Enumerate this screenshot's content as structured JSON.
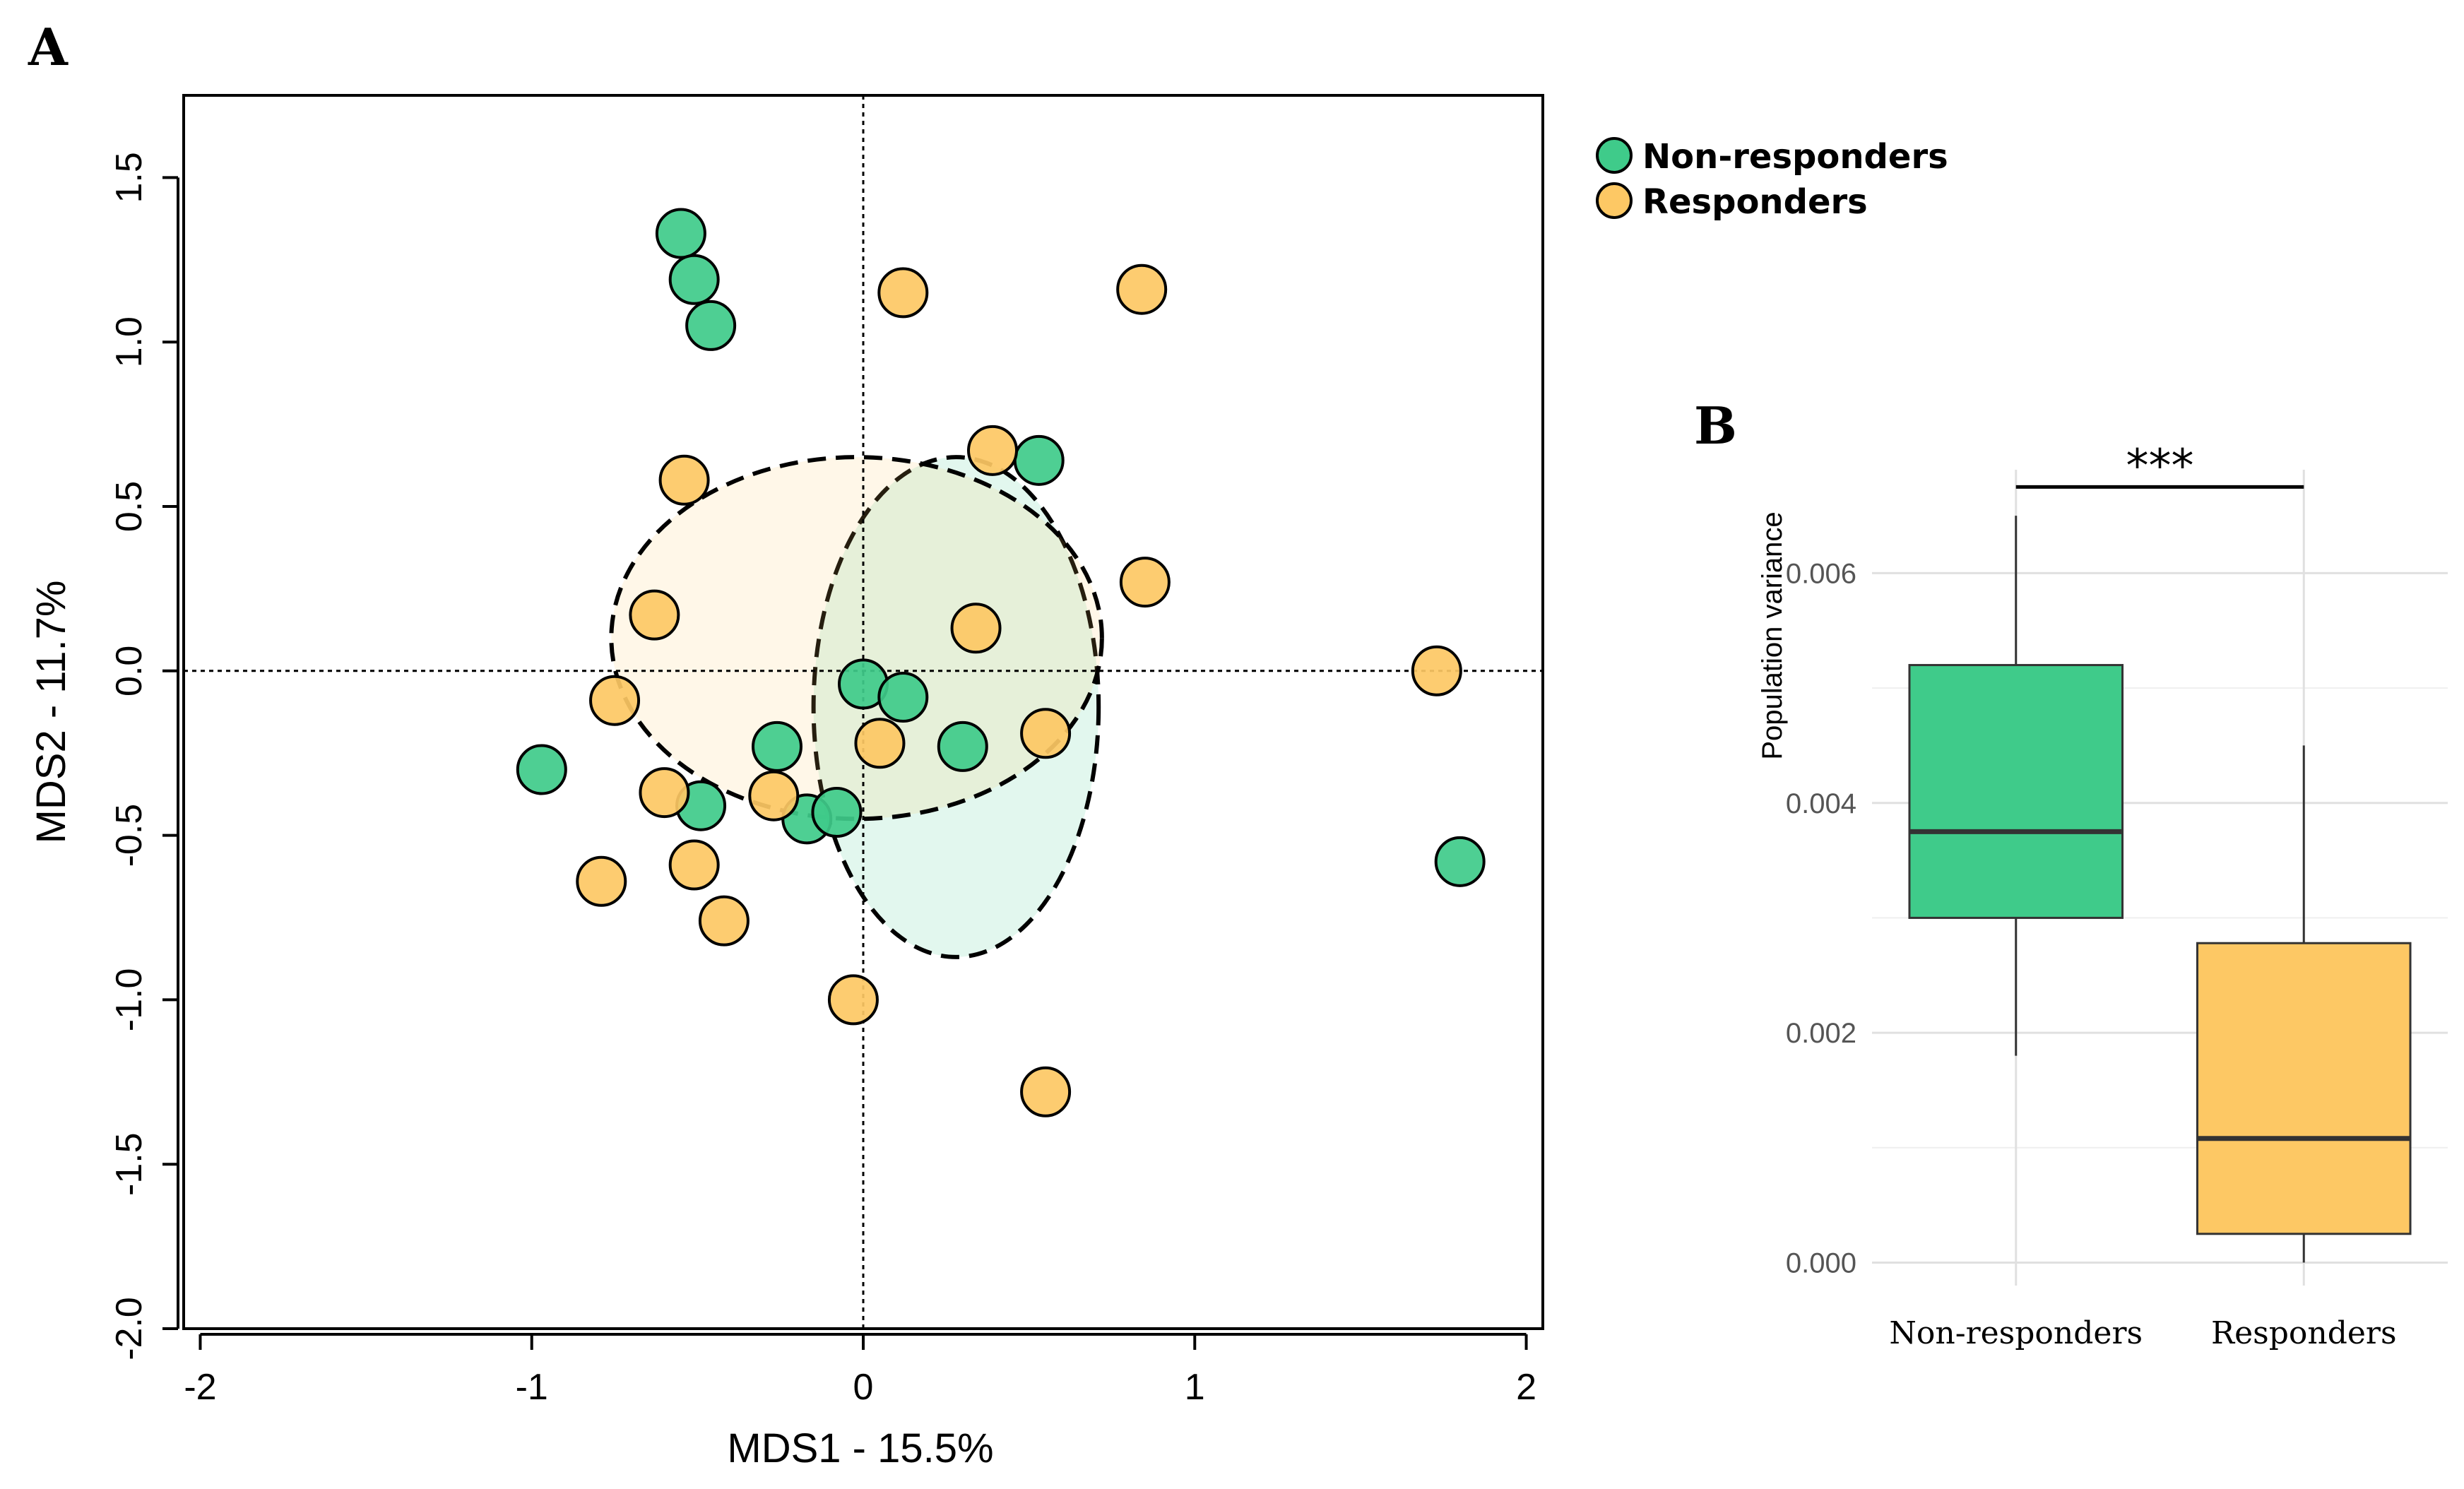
{
  "chart_data": [
    {
      "panel_label": "A",
      "type": "scatter",
      "xlabel": "MDS1 - 15.5%",
      "ylabel": "MDS2 - 11.7%",
      "xlim": [
        -2.05,
        2.05
      ],
      "ylim": [
        -2.0,
        1.75
      ],
      "xticks": [
        -2,
        -1,
        0,
        1,
        2
      ],
      "xtick_labels": [
        "-2",
        "-1",
        "0",
        "1",
        "2"
      ],
      "yticks": [
        -2.0,
        -1.5,
        -1.0,
        -0.5,
        0.0,
        0.5,
        1.0,
        1.5
      ],
      "ytick_labels": [
        "-2.0",
        "-1.5",
        "-1.0",
        "-0.5",
        "0.0",
        "0.5",
        "1.0",
        "1.5"
      ],
      "reference_lines": {
        "x": 0,
        "y": 0
      },
      "legend": [
        {
          "label": "Non-responders",
          "color": "#3fcb8a"
        },
        {
          "label": "Responders",
          "color": "#fdc864"
        }
      ],
      "series": [
        {
          "name": "Non-responders",
          "color": "#3fcb8a",
          "x": [
            -0.55,
            -0.51,
            -0.46,
            0.53,
            -0.97,
            -0.49,
            -0.17,
            -0.26,
            0.0,
            0.12,
            0.3,
            -0.08,
            1.8
          ],
          "y": [
            1.33,
            1.19,
            1.05,
            0.64,
            -0.3,
            -0.41,
            -0.45,
            -0.23,
            -0.04,
            -0.08,
            -0.23,
            -0.43,
            -0.58
          ]
        },
        {
          "name": "Responders",
          "color": "#fdc864",
          "x": [
            0.12,
            0.84,
            -0.54,
            0.39,
            0.85,
            -0.63,
            0.34,
            -0.75,
            0.05,
            0.55,
            1.73,
            -0.6,
            -0.27,
            -0.51,
            -0.79,
            -0.42,
            -0.03,
            0.55
          ],
          "y": [
            1.15,
            1.16,
            0.58,
            0.67,
            0.27,
            0.17,
            0.13,
            -0.09,
            -0.22,
            -0.19,
            0.0,
            -0.37,
            -0.38,
            -0.59,
            -0.64,
            -0.76,
            -1.0,
            -1.28
          ]
        }
      ],
      "ellipses": [
        {
          "group": "Non-responders",
          "color": "#3fcb8a",
          "center": [
            0.28,
            -0.11
          ],
          "semi_axes": [
            0.43,
            0.76
          ],
          "fill_opacity": 0.15
        },
        {
          "group": "Responders",
          "color": "#fdc864",
          "center": [
            -0.02,
            0.1
          ],
          "semi_axes": [
            0.74,
            0.55
          ],
          "fill_opacity": 0.15
        }
      ]
    },
    {
      "panel_label": "B",
      "type": "box",
      "ylabel": "Population variance",
      "ylim": [
        -0.0002,
        0.0069
      ],
      "yticks": [
        0.0,
        0.002,
        0.004,
        0.006
      ],
      "ytick_labels": [
        "0.000",
        "0.002",
        "0.004",
        "0.006"
      ],
      "categories": [
        "Non-responders",
        "Responders"
      ],
      "boxes": [
        {
          "name": "Non-responders",
          "color": "#3fcb8a",
          "whisker_low": 0.0018,
          "q1": 0.003,
          "median": 0.00375,
          "q3": 0.0052,
          "whisker_high": 0.0065
        },
        {
          "name": "Responders",
          "color": "#fdc864",
          "whisker_low": 0.0,
          "q1": 0.00025,
          "median": 0.00108,
          "q3": 0.00278,
          "whisker_high": 0.0045
        }
      ],
      "significance": {
        "label": "***",
        "between": [
          "Non-responders",
          "Responders"
        ],
        "y": 0.00675
      }
    }
  ]
}
